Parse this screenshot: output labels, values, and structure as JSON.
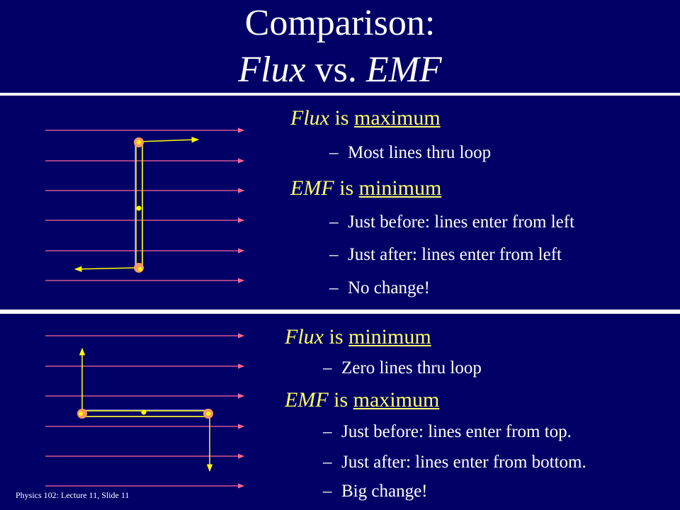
{
  "slide": {
    "title_line1": "Comparison:",
    "title_line2": {
      "word1": "Flux",
      "connector": " vs. ",
      "word2": "EMF"
    }
  },
  "top_section": {
    "heading1": {
      "term": "Flux",
      "is": " is ",
      "state": "maximum"
    },
    "bullets1": [
      "Most lines thru loop"
    ],
    "heading2": {
      "term": "EMF",
      "is": " is ",
      "state": "minimum"
    },
    "bullets2": [
      "Just before: lines enter from left",
      "Just after: lines enter from left",
      "No change!"
    ]
  },
  "bottom_section": {
    "heading1": {
      "term": "Flux",
      "is": " is ",
      "state": "minimum"
    },
    "bullets1": [
      "Zero lines thru loop"
    ],
    "heading2": {
      "term": "EMF",
      "is": " is ",
      "state": "maximum"
    },
    "bullets2": [
      "Just before: lines enter from top.",
      "Just after: lines enter from bottom.",
      "Big change!"
    ]
  },
  "footer": "Physics 102: Lecture 11, Slide 11",
  "bullet_dash": "–",
  "colors": {
    "background": "#000066",
    "heading": "#ffff66",
    "field_line": "#ff6699",
    "loop": "#ffff00",
    "pivot": "#ff9966"
  }
}
